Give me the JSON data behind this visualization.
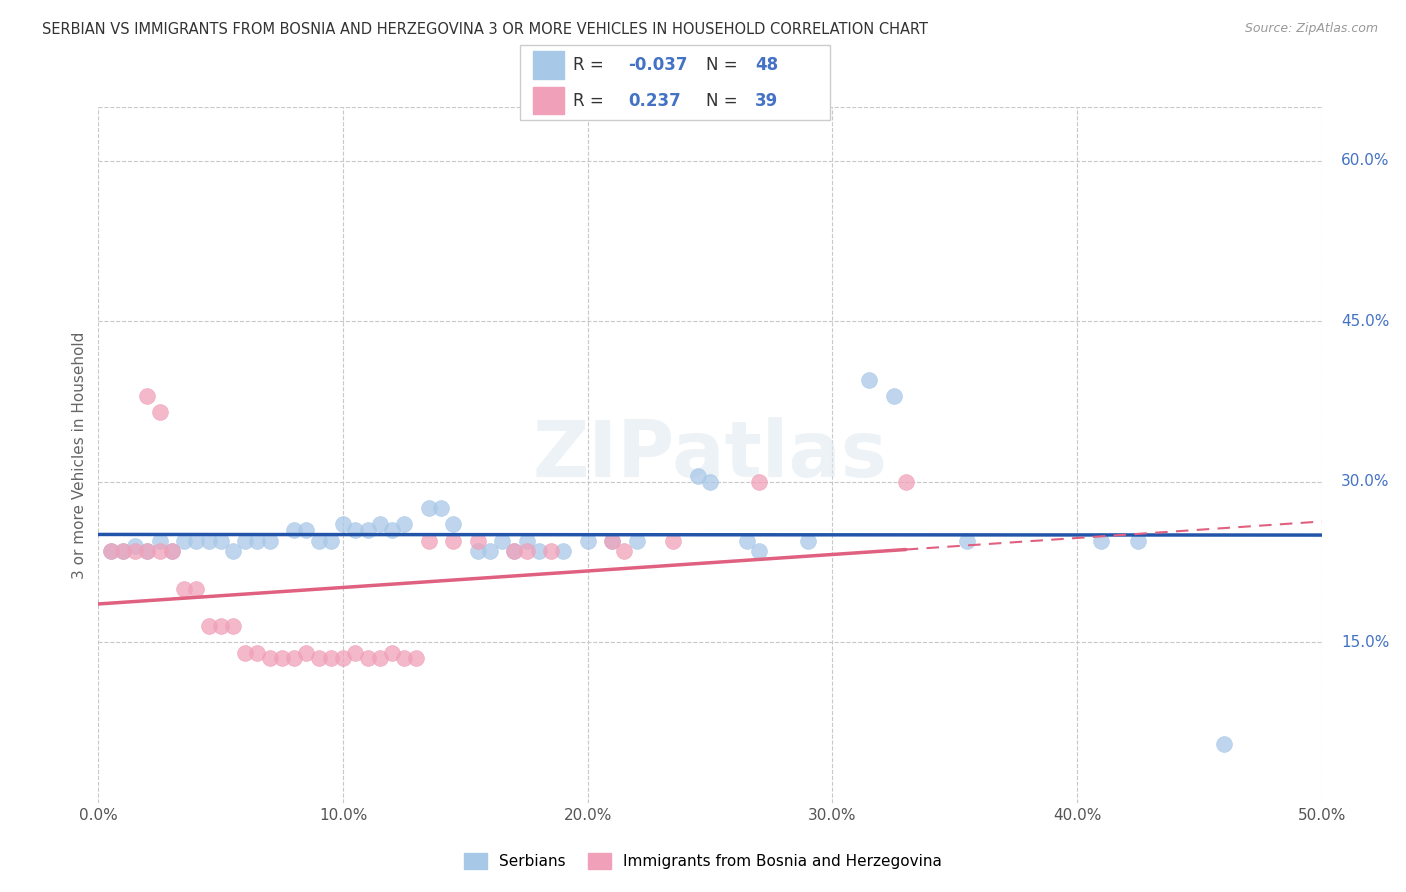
{
  "title": "SERBIAN VS IMMIGRANTS FROM BOSNIA AND HERZEGOVINA 3 OR MORE VEHICLES IN HOUSEHOLD CORRELATION CHART",
  "source": "Source: ZipAtlas.com",
  "ylabel": "3 or more Vehicles in Household",
  "xmin": 0.0,
  "xmax": 0.5,
  "ymin": 0.0,
  "ymax": 0.65,
  "xtick_vals": [
    0.0,
    0.1,
    0.2,
    0.3,
    0.4,
    0.5
  ],
  "ytick_vals": [
    0.15,
    0.3,
    0.45,
    0.6
  ],
  "ytick_labels": [
    "15.0%",
    "30.0%",
    "45.0%",
    "60.0%"
  ],
  "grid_color": "#c8c8c8",
  "background_color": "#ffffff",
  "watermark": "ZIPatlas",
  "legend_label_1": "Serbians",
  "legend_label_2": "Immigrants from Bosnia and Herzegovina",
  "R1": -0.037,
  "N1": 48,
  "R2": 0.237,
  "N2": 39,
  "color_blue": "#a8c8e8",
  "color_pink": "#f0a0b8",
  "color_blue_line": "#2255aa",
  "color_pink_line": "#e06080",
  "scatter_blue": [
    [
      0.005,
      0.235
    ],
    [
      0.01,
      0.235
    ],
    [
      0.015,
      0.24
    ],
    [
      0.02,
      0.235
    ],
    [
      0.025,
      0.245
    ],
    [
      0.03,
      0.235
    ],
    [
      0.035,
      0.245
    ],
    [
      0.04,
      0.245
    ],
    [
      0.045,
      0.245
    ],
    [
      0.05,
      0.245
    ],
    [
      0.055,
      0.235
    ],
    [
      0.06,
      0.245
    ],
    [
      0.065,
      0.245
    ],
    [
      0.07,
      0.245
    ],
    [
      0.08,
      0.255
    ],
    [
      0.085,
      0.255
    ],
    [
      0.09,
      0.245
    ],
    [
      0.095,
      0.245
    ],
    [
      0.1,
      0.26
    ],
    [
      0.105,
      0.255
    ],
    [
      0.11,
      0.255
    ],
    [
      0.115,
      0.26
    ],
    [
      0.12,
      0.255
    ],
    [
      0.125,
      0.26
    ],
    [
      0.135,
      0.275
    ],
    [
      0.14,
      0.275
    ],
    [
      0.145,
      0.26
    ],
    [
      0.155,
      0.235
    ],
    [
      0.16,
      0.235
    ],
    [
      0.165,
      0.245
    ],
    [
      0.17,
      0.235
    ],
    [
      0.175,
      0.245
    ],
    [
      0.18,
      0.235
    ],
    [
      0.19,
      0.235
    ],
    [
      0.2,
      0.245
    ],
    [
      0.21,
      0.245
    ],
    [
      0.22,
      0.245
    ],
    [
      0.245,
      0.305
    ],
    [
      0.25,
      0.3
    ],
    [
      0.265,
      0.245
    ],
    [
      0.27,
      0.235
    ],
    [
      0.29,
      0.245
    ],
    [
      0.315,
      0.395
    ],
    [
      0.325,
      0.38
    ],
    [
      0.355,
      0.245
    ],
    [
      0.41,
      0.245
    ],
    [
      0.425,
      0.245
    ],
    [
      0.46,
      0.055
    ]
  ],
  "scatter_pink": [
    [
      0.005,
      0.235
    ],
    [
      0.01,
      0.235
    ],
    [
      0.015,
      0.235
    ],
    [
      0.02,
      0.235
    ],
    [
      0.025,
      0.235
    ],
    [
      0.03,
      0.235
    ],
    [
      0.035,
      0.2
    ],
    [
      0.04,
      0.2
    ],
    [
      0.045,
      0.165
    ],
    [
      0.05,
      0.165
    ],
    [
      0.055,
      0.165
    ],
    [
      0.06,
      0.14
    ],
    [
      0.065,
      0.14
    ],
    [
      0.07,
      0.135
    ],
    [
      0.075,
      0.135
    ],
    [
      0.08,
      0.135
    ],
    [
      0.085,
      0.14
    ],
    [
      0.09,
      0.135
    ],
    [
      0.095,
      0.135
    ],
    [
      0.1,
      0.135
    ],
    [
      0.105,
      0.14
    ],
    [
      0.11,
      0.135
    ],
    [
      0.115,
      0.135
    ],
    [
      0.12,
      0.14
    ],
    [
      0.125,
      0.135
    ],
    [
      0.13,
      0.135
    ],
    [
      0.02,
      0.38
    ],
    [
      0.025,
      0.365
    ],
    [
      0.135,
      0.245
    ],
    [
      0.145,
      0.245
    ],
    [
      0.155,
      0.245
    ],
    [
      0.17,
      0.235
    ],
    [
      0.175,
      0.235
    ],
    [
      0.185,
      0.235
    ],
    [
      0.21,
      0.245
    ],
    [
      0.215,
      0.235
    ],
    [
      0.235,
      0.245
    ],
    [
      0.27,
      0.3
    ],
    [
      0.33,
      0.3
    ]
  ]
}
